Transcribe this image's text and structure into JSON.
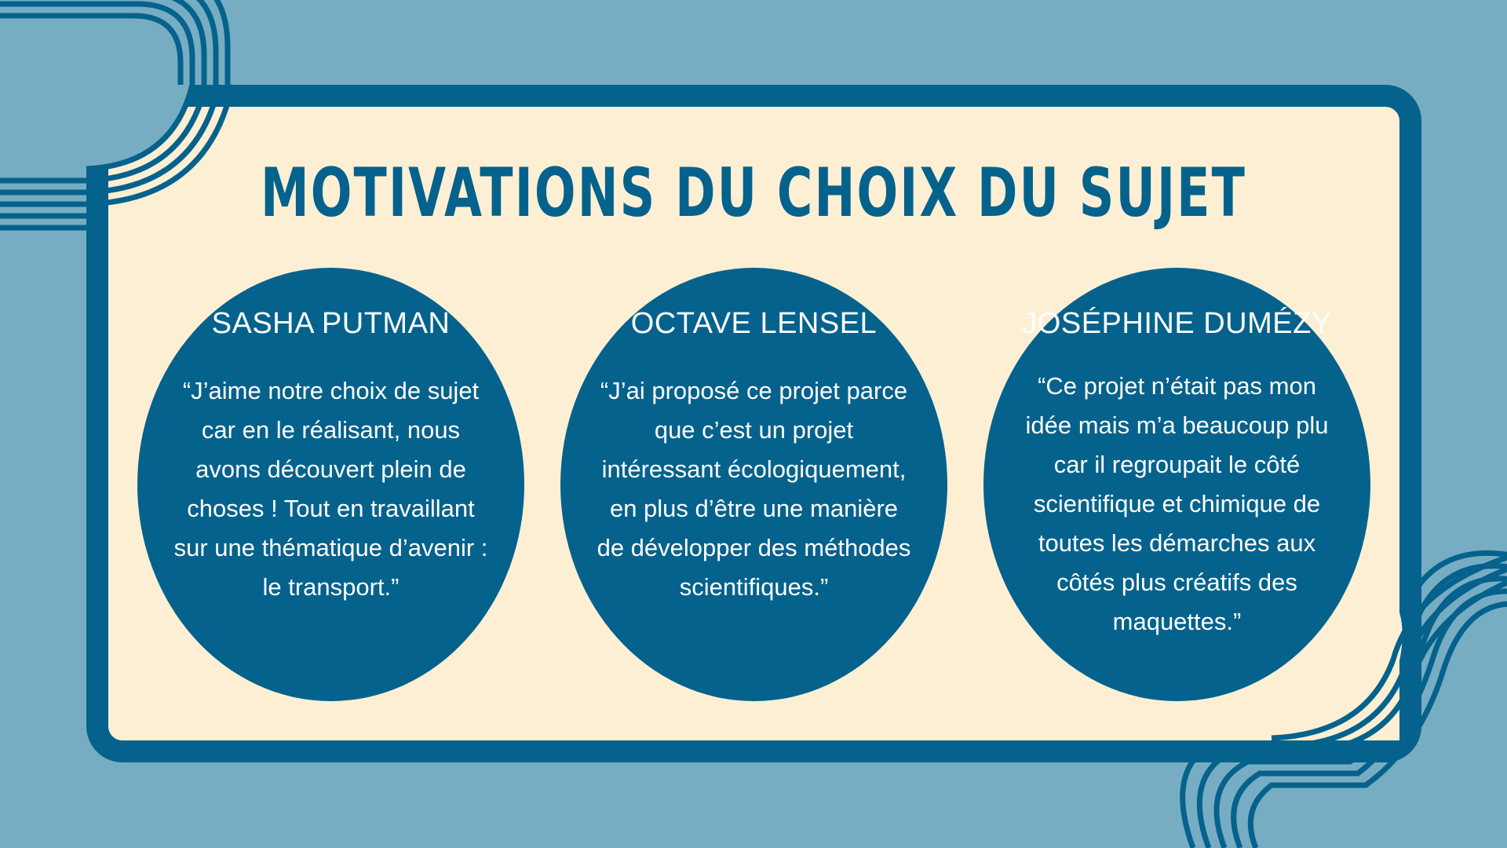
{
  "slide": {
    "title": "MOTIVATIONS DU CHOIX DU SUJET",
    "colors": {
      "background": "#77adc3",
      "panel": "#fdefd4",
      "accent": "#05628c",
      "card_text": "#ffffff"
    },
    "decorations": [
      "concentric-rounded-square-lines-top-left",
      "concentric-loop-lines-bottom-right"
    ]
  },
  "cards": [
    {
      "name": "SASHA PUTMAN",
      "quote": "“J’aime notre choix de sujet car en le réalisant, nous avons découvert plein de choses ! Tout en travaillant sur une thématique d’avenir : le transport.”"
    },
    {
      "name": "OCTAVE LENSEL",
      "quote": "“J’ai proposé ce projet parce que c’est un projet intéressant écologiquement, en plus d’être une manière de développer des méthodes scientifiques.”"
    },
    {
      "name": "JOSÉPHINE DUMÉZY",
      "quote": "“Ce projet n’était pas mon idée mais m’a beaucoup plu car il regroupait le côté scientifique et chimique de toutes les démarches aux côtés plus créatifs des maquettes.”"
    }
  ]
}
